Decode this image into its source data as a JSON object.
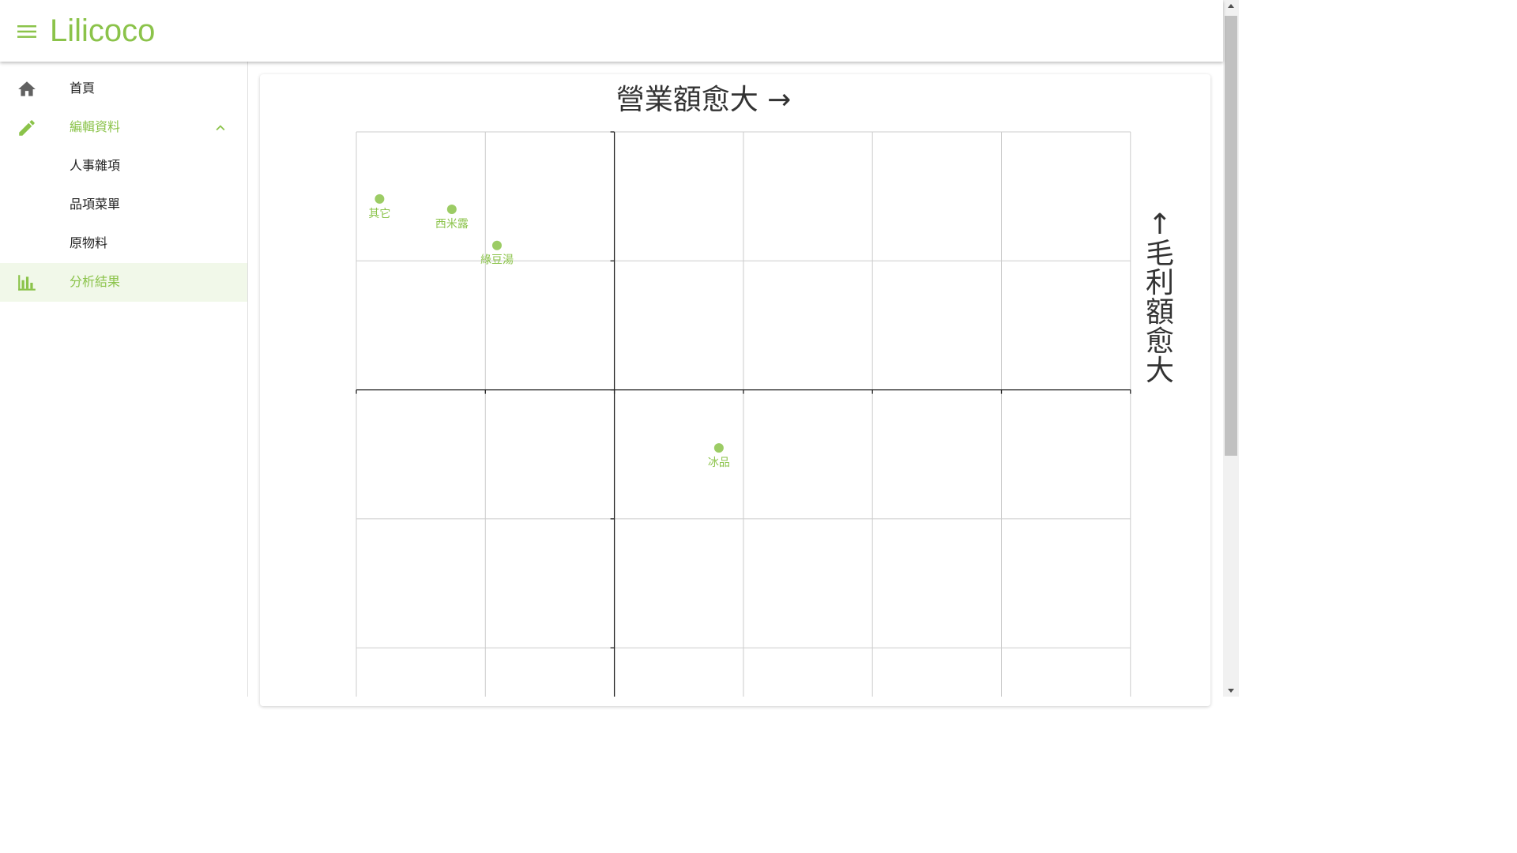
{
  "app": {
    "brand": "Lilicoco",
    "accent": "#8bc34a"
  },
  "sidebar": {
    "items": [
      {
        "label": "首頁",
        "icon": "home-icon"
      },
      {
        "label": "編輯資料",
        "icon": "pencil-icon",
        "expanded": true
      },
      {
        "label": "人事雜項"
      },
      {
        "label": "品項菜單"
      },
      {
        "label": "原物料"
      },
      {
        "label": "分析結果",
        "icon": "bar-chart-icon",
        "active": true
      }
    ]
  },
  "chart_data": {
    "type": "scatter",
    "title": "營業額愈大 →",
    "ylabel": "↑毛利額愈大",
    "xlim": [
      -2,
      4
    ],
    "ylim": [
      -2.4,
      2
    ],
    "grid": true,
    "points": [
      {
        "label": "其它",
        "x": -1.82,
        "y": 1.48
      },
      {
        "label": "西米露",
        "x": -1.26,
        "y": 1.4
      },
      {
        "label": "綠豆湯",
        "x": -0.91,
        "y": 1.12
      },
      {
        "label": "冰品",
        "x": 0.81,
        "y": -0.45
      }
    ]
  }
}
